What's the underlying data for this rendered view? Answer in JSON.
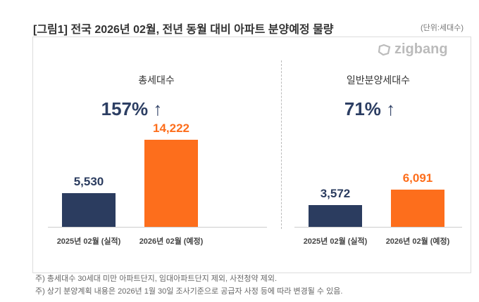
{
  "title": "[그림1] 전국 2026년 02월, 전년 동월 대비 아파트 분양예정 물량",
  "unit": "(단위:세대수)",
  "logo": "zigbang",
  "notes": [
    "주) 총세대수 30세대 미만 아파트단지, 임대아파트단지 제외, 사전청약 제외.",
    "주) 상기 분양계획 내용은 2026년 1월 30일 조사기준으로 공급자 사정 등에 따라 변경될 수 있음."
  ],
  "colors": {
    "navy": "#2b3c5f",
    "orange": "#fd6e1c"
  },
  "chart_data": [
    {
      "type": "bar",
      "title": "총세대수",
      "headline": "157% ↑",
      "categories": [
        "2025년 02월 (실적)",
        "2026년 02월 (예정)"
      ],
      "values": [
        5530,
        14222
      ],
      "labels": [
        "5,530",
        "14,222"
      ],
      "ylim": [
        0,
        14222
      ]
    },
    {
      "type": "bar",
      "title": "일반분양세대수",
      "headline": "71% ↑",
      "categories": [
        "2025년 02월 (실적)",
        "2026년 02월 (예정)"
      ],
      "values": [
        3572,
        6091
      ],
      "labels": [
        "3,572",
        "6,091"
      ],
      "ylim": [
        0,
        14222
      ]
    }
  ]
}
